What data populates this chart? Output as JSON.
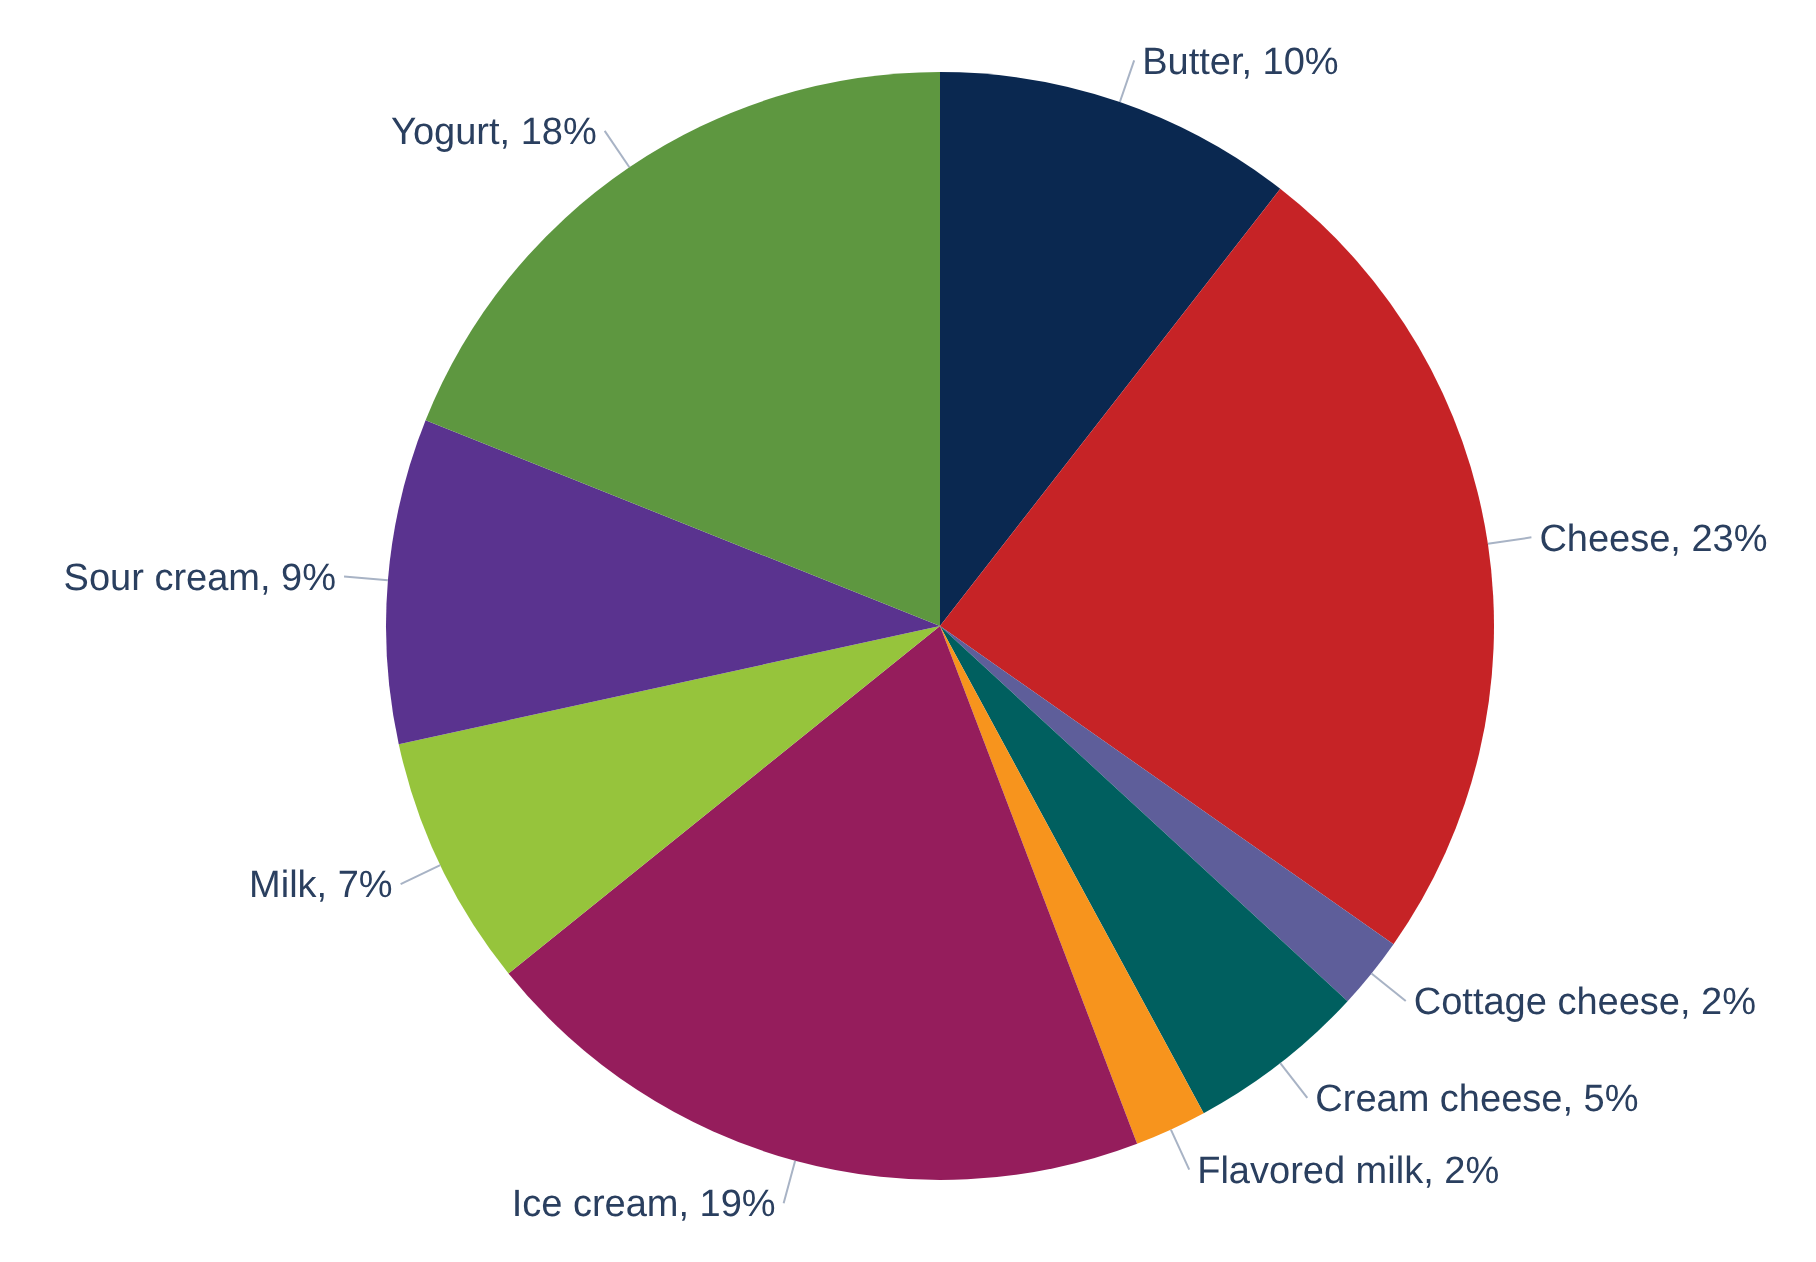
{
  "chart_data": {
    "type": "pie",
    "categories": [
      "Butter",
      "Cheese",
      "Cottage cheese",
      "Cream cheese",
      "Flavored milk",
      "Ice cream",
      "Milk",
      "Sour cream",
      "Yogurt"
    ],
    "values": [
      10,
      23,
      2,
      5,
      2,
      19,
      7,
      9,
      18
    ],
    "value_labels": [
      "10%",
      "23%",
      "2%",
      "5%",
      "2%",
      "19%",
      "7%",
      "9%",
      "18%"
    ],
    "colors": [
      "#0a2850",
      "#c62326",
      "#5e5e9a",
      "#005f5f",
      "#f7941d",
      "#951d5c",
      "#96c43c",
      "#5a338f",
      "#5e9740"
    ]
  }
}
